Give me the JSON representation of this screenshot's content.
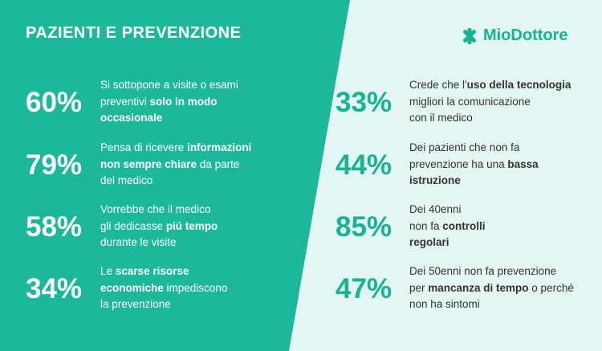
{
  "header": {
    "title": "PAZIENTI E PREVENZIONE",
    "brand": "MioDottore"
  },
  "columns": [
    {
      "items": [
        {
          "value": "60%",
          "lines": [
            [
              {
                "text": "Si sottopone a visite o esami",
                "bold": false
              }
            ],
            [
              {
                "text": "preventivi ",
                "bold": false
              },
              {
                "text": "solo in modo",
                "bold": true
              }
            ],
            [
              {
                "text": "occasionale",
                "bold": true
              }
            ]
          ]
        },
        {
          "value": "79%",
          "lines": [
            [
              {
                "text": "Pensa di ricevere ",
                "bold": false
              },
              {
                "text": "informazioni",
                "bold": true
              }
            ],
            [
              {
                "text": "non sempre chiare",
                "bold": true
              },
              {
                "text": " da parte",
                "bold": false
              }
            ],
            [
              {
                "text": "del medico",
                "bold": false
              }
            ]
          ]
        },
        {
          "value": "58%",
          "lines": [
            [
              {
                "text": "Vorrebbe che il medico",
                "bold": false
              }
            ],
            [
              {
                "text": "gli dedicasse ",
                "bold": false
              },
              {
                "text": "piú tempo",
                "bold": true
              }
            ],
            [
              {
                "text": "durante le visite",
                "bold": false
              }
            ]
          ]
        },
        {
          "value": "34%",
          "lines": [
            [
              {
                "text": "Le ",
                "bold": false
              },
              {
                "text": "scarse risorse",
                "bold": true
              }
            ],
            [
              {
                "text": "economiche",
                "bold": true
              },
              {
                "text": " impediscono",
                "bold": false
              }
            ],
            [
              {
                "text": "la prevenzione",
                "bold": false
              }
            ]
          ]
        }
      ]
    },
    {
      "items": [
        {
          "value": "33%",
          "lines": [
            [
              {
                "text": "Crede che l'",
                "bold": false
              },
              {
                "text": "uso della tecnologia",
                "bold": true
              }
            ],
            [
              {
                "text": "migliori la comunicazione",
                "bold": false
              }
            ],
            [
              {
                "text": "con il medico",
                "bold": false
              }
            ]
          ]
        },
        {
          "value": "44%",
          "lines": [
            [
              {
                "text": "Dei pazienti che non fa",
                "bold": false
              }
            ],
            [
              {
                "text": "prevenzione ha una ",
                "bold": false
              },
              {
                "text": "bassa",
                "bold": true
              }
            ],
            [
              {
                "text": "istruzione",
                "bold": true
              }
            ]
          ]
        },
        {
          "value": "85%",
          "lines": [
            [
              {
                "text": "Dei 40enni",
                "bold": false
              }
            ],
            [
              {
                "text": "non fa ",
                "bold": false
              },
              {
                "text": "controlli",
                "bold": true
              }
            ],
            [
              {
                "text": "regolari",
                "bold": true
              }
            ]
          ]
        },
        {
          "value": "47%",
          "lines": [
            [
              {
                "text": "Dei 50enni non fa prevenzione",
                "bold": false
              }
            ],
            [
              {
                "text": "per ",
                "bold": false
              },
              {
                "text": "mancanza di tempo",
                "bold": true
              },
              {
                "text": " o perché",
                "bold": false
              }
            ],
            [
              {
                "text": "non ha sintomi",
                "bold": false
              }
            ]
          ]
        }
      ]
    }
  ]
}
